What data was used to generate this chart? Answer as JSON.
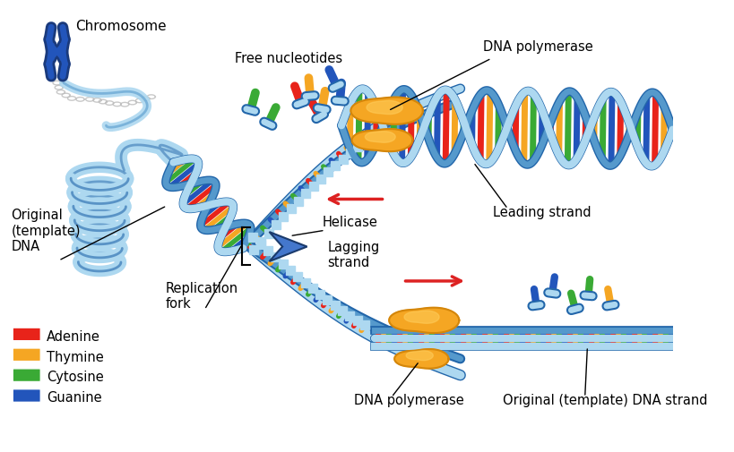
{
  "background_color": "#ffffff",
  "labels": {
    "chromosome": "Chromosome",
    "free_nucleotides": "Free nucleotides",
    "dna_polymerase_top": "DNA polymerase",
    "leading_strand": "Leading strand",
    "helicase": "Helicase",
    "lagging_strand": "Lagging\nstrand",
    "replication_fork": "Replication\nfork",
    "original_template": "Original\n(template)\nDNA",
    "dna_polymerase_bottom": "DNA polymerase",
    "original_strand": "Original (template) DNA strand"
  },
  "legend": {
    "adenine": {
      "color": "#e8231a",
      "label": "Adenine"
    },
    "thymine": {
      "color": "#f5a623",
      "label": "Thymine"
    },
    "cytosine": {
      "color": "#3aaa35",
      "label": "Cytosine"
    },
    "guanine": {
      "color": "#2255bb",
      "label": "Guanine"
    }
  },
  "colors": {
    "backbone_light": "#add8f0",
    "backbone_dark": "#5599cc",
    "backbone_outline": "#2266aa",
    "chr_dark": "#1a3a7c",
    "chr_mid": "#2255bb",
    "helicase_color": "#4477cc",
    "polymerase_color": "#f5a623",
    "polymerase_dark": "#d4860a",
    "red": "#e8231a",
    "orange": "#f5a623",
    "green": "#3aaa35",
    "blue": "#2255bb",
    "arrow_red": "#dd2222",
    "nuc_cap": "#add8f0",
    "nuc_cap_outline": "#5599cc"
  },
  "figsize": [
    8.19,
    5.06
  ],
  "dpi": 100
}
